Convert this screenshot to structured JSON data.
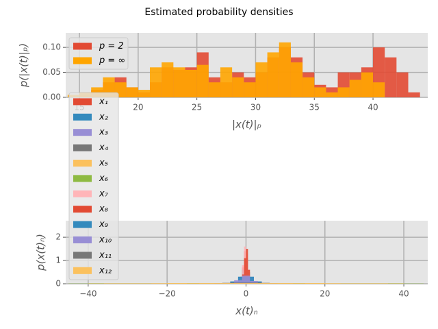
{
  "title": "Estimated probability densities",
  "chart_data": [
    {
      "type": "histogram",
      "xlabel": "|x(t)|ₚ",
      "ylabel": "p(|x(t)|ₚ)",
      "xlim": [
        13.83,
        44.66
      ],
      "ylim": [
        0,
        0.129
      ],
      "xticks": [
        15,
        20,
        25,
        30,
        35,
        40
      ],
      "yticks": [
        {
          "value": 0,
          "label": "0.00"
        },
        {
          "value": 0.05,
          "label": "0.05"
        },
        {
          "value": 0.1,
          "label": "0.10"
        }
      ],
      "grid": true,
      "legend": "upper left",
      "series": [
        {
          "name": "p = 2",
          "color": "#E24A33",
          "bins": [
            15,
            16,
            17,
            18,
            19,
            20,
            21,
            22,
            23,
            24,
            25,
            26,
            27,
            28,
            29,
            30,
            31,
            32,
            33,
            34,
            35,
            36,
            37,
            38,
            39,
            40,
            41,
            42,
            43,
            44
          ],
          "values": [
            0.005,
            0.015,
            0.03,
            0.04,
            0.02,
            0.01,
            0.03,
            0.06,
            0.055,
            0.06,
            0.09,
            0.04,
            0.03,
            0.05,
            0.04,
            0.05,
            0.08,
            0.1,
            0.08,
            0.05,
            0.025,
            0.02,
            0.05,
            0.05,
            0.06,
            0.1,
            0.08,
            0.05,
            0.01
          ]
        },
        {
          "name": "p = ∞",
          "color": "#FFA500",
          "bins": [
            14,
            15,
            16,
            17,
            18,
            19,
            20,
            21,
            22,
            23,
            24,
            25,
            26,
            27,
            28,
            29,
            30,
            31,
            32,
            33,
            34,
            35,
            36,
            37,
            38,
            39,
            40,
            41
          ],
          "values": [
            0.005,
            0.01,
            0.02,
            0.04,
            0.03,
            0.02,
            0.015,
            0.06,
            0.07,
            0.06,
            0.055,
            0.065,
            0.03,
            0.06,
            0.04,
            0.03,
            0.07,
            0.09,
            0.11,
            0.07,
            0.04,
            0.02,
            0.01,
            0.02,
            0.035,
            0.05,
            0.03
          ]
        }
      ]
    },
    {
      "type": "histogram",
      "xlabel": "x(t)ₙ",
      "ylabel": "p(x(t)ₙ)",
      "xlim": [
        -45.7,
        46.06
      ],
      "ylim": [
        0,
        2.71
      ],
      "xticks": [
        {
          "value": -40,
          "label": "−40"
        },
        {
          "value": -20,
          "label": "−20"
        },
        0,
        20,
        40
      ],
      "yticks": [
        0,
        1,
        2
      ],
      "grid": true,
      "legend": "lower left",
      "series": [
        {
          "name": "x₁",
          "color": "#E24A33",
          "bins": [
            -2,
            -1.5,
            -1,
            -0.5,
            0,
            0.5,
            1,
            1.5,
            2
          ],
          "values": [
            0.05,
            0.3,
            0.7,
            1.4,
            1.1,
            0.5,
            0.2,
            0.05
          ]
        },
        {
          "name": "x₂",
          "color": "#348ABD",
          "bins": [
            -3,
            -2,
            -1,
            0,
            1,
            2,
            3
          ],
          "values": [
            0.1,
            0.3,
            0.6,
            0.5,
            0.3,
            0.1
          ]
        },
        {
          "name": "x₃",
          "color": "#988ED5",
          "bins": [
            -4,
            -2,
            0,
            2,
            4
          ],
          "values": [
            0.1,
            0.25,
            0.28,
            0.1
          ]
        },
        {
          "name": "x₄",
          "color": "#777777",
          "bins": [
            -12,
            -6,
            0,
            6,
            12
          ],
          "values": [
            0.02,
            0.04,
            0.04,
            0.02
          ]
        },
        {
          "name": "x₅",
          "color": "#FBC15E",
          "bins": [
            -40,
            -20,
            0,
            20,
            40
          ],
          "values": [
            0.02,
            0.03,
            0.03,
            0.02
          ]
        },
        {
          "name": "x₆",
          "color": "#8EBA42",
          "bins": [
            -45,
            -15,
            15,
            45
          ],
          "values": [
            0.01,
            0.02,
            0.01
          ]
        },
        {
          "name": "x₇",
          "color": "#FFB5B8",
          "bins": [
            -1.5,
            -1,
            -0.5,
            0,
            0.5,
            1,
            1.5
          ],
          "values": [
            0.2,
            0.8,
            1.6,
            1.3,
            0.6,
            0.1
          ]
        },
        {
          "name": "x₈",
          "color": "#E24A33",
          "bins": [
            -1,
            -0.5,
            0,
            0.5,
            1
          ],
          "values": [
            0.4,
            1.1,
            1.5,
            0.6
          ]
        },
        {
          "name": "x₉",
          "color": "#348ABD",
          "bins": [
            -4,
            -2,
            0,
            2,
            4
          ],
          "values": [
            0.1,
            0.3,
            0.3,
            0.1
          ]
        },
        {
          "name": "x₁₀",
          "color": "#988ED5",
          "bins": [
            -3,
            -1,
            1,
            3
          ],
          "values": [
            0.15,
            0.35,
            0.12
          ]
        },
        {
          "name": "x₁₁",
          "color": "#777777",
          "bins": [
            -8,
            -4,
            0,
            4,
            8
          ],
          "values": [
            0.02,
            0.05,
            0.05,
            0.02
          ]
        },
        {
          "name": "x₁₂",
          "color": "#FBC15E",
          "bins": [
            -36,
            -24,
            -12,
            0,
            12,
            24,
            36
          ],
          "values": [
            0.01,
            0.02,
            0.03,
            0.03,
            0.02,
            0.01
          ]
        }
      ]
    }
  ]
}
